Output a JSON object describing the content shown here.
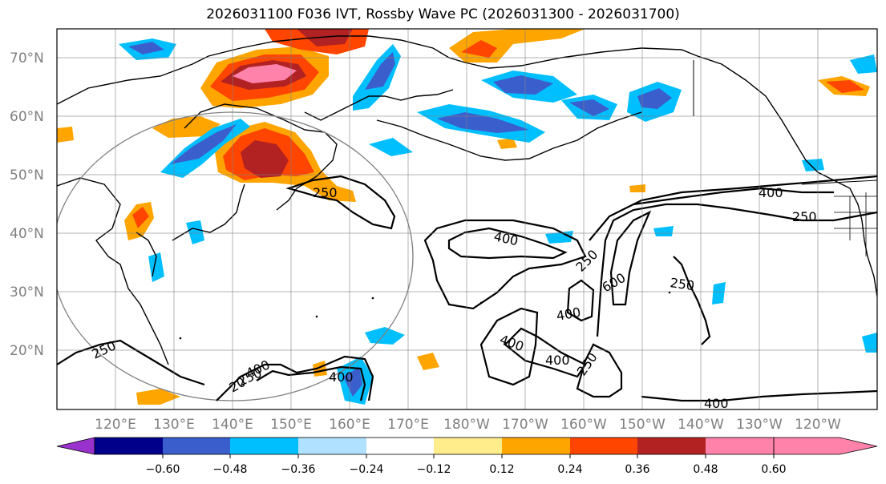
{
  "title": "2026031100 F036 IVT, Rossby Wave PC (2026031300 - 2026031700)",
  "lat_labels": [
    "70°N",
    "60°N",
    "50°N",
    "40°N",
    "30°N",
    "20°N"
  ],
  "lon_labels": [
    "120°E",
    "130°E",
    "140°E",
    "150°E",
    "160°E",
    "170°E",
    "180°W",
    "170°W",
    "160°W",
    "150°W",
    "140°W",
    "130°W",
    "120°W"
  ],
  "contour_labels": [
    "250",
    "400",
    "400",
    "250",
    "600",
    "250",
    "250",
    "400",
    "250",
    "400",
    "20",
    "400",
    "400",
    "250",
    "250",
    "400",
    "400"
  ],
  "colorbar": {
    "tick_labels": [
      "−0.60",
      "−0.48",
      "−0.36",
      "−0.24",
      "−0.12",
      "0.12",
      "0.24",
      "0.36",
      "0.48",
      "0.60"
    ],
    "colors": [
      "#9932cc",
      "#00008b",
      "#3a5fcd",
      "#00bfff",
      "#b0e2ff",
      "#ffffff",
      "#ffec8b",
      "#ffa500",
      "#ff4500",
      "#b22222",
      "#ff82ab"
    ]
  }
}
